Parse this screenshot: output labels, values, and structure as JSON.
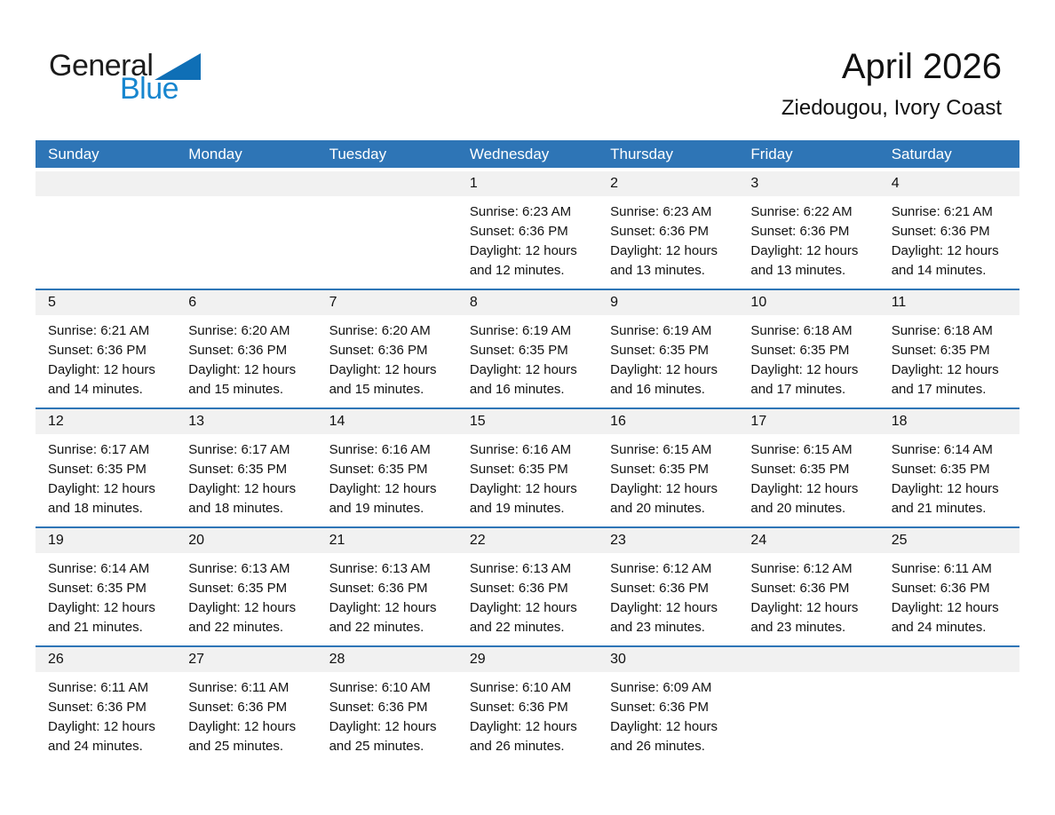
{
  "logo": {
    "part1": "General",
    "part2": "Blue"
  },
  "header": {
    "title": "April 2026",
    "subtitle": "Ziedougou, Ivory Coast"
  },
  "colors": {
    "header_bg": "#2E75B6",
    "accent": "#2E75B6",
    "band_bg": "#F1F1F1",
    "logo_triangle": "#0F6FB6",
    "logo_blue": "#1786CF",
    "text": "#1a1a1a"
  },
  "weekdays": [
    "Sunday",
    "Monday",
    "Tuesday",
    "Wednesday",
    "Thursday",
    "Friday",
    "Saturday"
  ],
  "weeks": [
    [
      {
        "day": "",
        "lines": []
      },
      {
        "day": "",
        "lines": []
      },
      {
        "day": "",
        "lines": []
      },
      {
        "day": "1",
        "lines": [
          "Sunrise: 6:23 AM",
          "Sunset: 6:36 PM",
          "Daylight: 12 hours",
          "and 12 minutes."
        ]
      },
      {
        "day": "2",
        "lines": [
          "Sunrise: 6:23 AM",
          "Sunset: 6:36 PM",
          "Daylight: 12 hours",
          "and 13 minutes."
        ]
      },
      {
        "day": "3",
        "lines": [
          "Sunrise: 6:22 AM",
          "Sunset: 6:36 PM",
          "Daylight: 12 hours",
          "and 13 minutes."
        ]
      },
      {
        "day": "4",
        "lines": [
          "Sunrise: 6:21 AM",
          "Sunset: 6:36 PM",
          "Daylight: 12 hours",
          "and 14 minutes."
        ]
      }
    ],
    [
      {
        "day": "5",
        "lines": [
          "Sunrise: 6:21 AM",
          "Sunset: 6:36 PM",
          "Daylight: 12 hours",
          "and 14 minutes."
        ]
      },
      {
        "day": "6",
        "lines": [
          "Sunrise: 6:20 AM",
          "Sunset: 6:36 PM",
          "Daylight: 12 hours",
          "and 15 minutes."
        ]
      },
      {
        "day": "7",
        "lines": [
          "Sunrise: 6:20 AM",
          "Sunset: 6:36 PM",
          "Daylight: 12 hours",
          "and 15 minutes."
        ]
      },
      {
        "day": "8",
        "lines": [
          "Sunrise: 6:19 AM",
          "Sunset: 6:35 PM",
          "Daylight: 12 hours",
          "and 16 minutes."
        ]
      },
      {
        "day": "9",
        "lines": [
          "Sunrise: 6:19 AM",
          "Sunset: 6:35 PM",
          "Daylight: 12 hours",
          "and 16 minutes."
        ]
      },
      {
        "day": "10",
        "lines": [
          "Sunrise: 6:18 AM",
          "Sunset: 6:35 PM",
          "Daylight: 12 hours",
          "and 17 minutes."
        ]
      },
      {
        "day": "11",
        "lines": [
          "Sunrise: 6:18 AM",
          "Sunset: 6:35 PM",
          "Daylight: 12 hours",
          "and 17 minutes."
        ]
      }
    ],
    [
      {
        "day": "12",
        "lines": [
          "Sunrise: 6:17 AM",
          "Sunset: 6:35 PM",
          "Daylight: 12 hours",
          "and 18 minutes."
        ]
      },
      {
        "day": "13",
        "lines": [
          "Sunrise: 6:17 AM",
          "Sunset: 6:35 PM",
          "Daylight: 12 hours",
          "and 18 minutes."
        ]
      },
      {
        "day": "14",
        "lines": [
          "Sunrise: 6:16 AM",
          "Sunset: 6:35 PM",
          "Daylight: 12 hours",
          "and 19 minutes."
        ]
      },
      {
        "day": "15",
        "lines": [
          "Sunrise: 6:16 AM",
          "Sunset: 6:35 PM",
          "Daylight: 12 hours",
          "and 19 minutes."
        ]
      },
      {
        "day": "16",
        "lines": [
          "Sunrise: 6:15 AM",
          "Sunset: 6:35 PM",
          "Daylight: 12 hours",
          "and 20 minutes."
        ]
      },
      {
        "day": "17",
        "lines": [
          "Sunrise: 6:15 AM",
          "Sunset: 6:35 PM",
          "Daylight: 12 hours",
          "and 20 minutes."
        ]
      },
      {
        "day": "18",
        "lines": [
          "Sunrise: 6:14 AM",
          "Sunset: 6:35 PM",
          "Daylight: 12 hours",
          "and 21 minutes."
        ]
      }
    ],
    [
      {
        "day": "19",
        "lines": [
          "Sunrise: 6:14 AM",
          "Sunset: 6:35 PM",
          "Daylight: 12 hours",
          "and 21 minutes."
        ]
      },
      {
        "day": "20",
        "lines": [
          "Sunrise: 6:13 AM",
          "Sunset: 6:35 PM",
          "Daylight: 12 hours",
          "and 22 minutes."
        ]
      },
      {
        "day": "21",
        "lines": [
          "Sunrise: 6:13 AM",
          "Sunset: 6:36 PM",
          "Daylight: 12 hours",
          "and 22 minutes."
        ]
      },
      {
        "day": "22",
        "lines": [
          "Sunrise: 6:13 AM",
          "Sunset: 6:36 PM",
          "Daylight: 12 hours",
          "and 22 minutes."
        ]
      },
      {
        "day": "23",
        "lines": [
          "Sunrise: 6:12 AM",
          "Sunset: 6:36 PM",
          "Daylight: 12 hours",
          "and 23 minutes."
        ]
      },
      {
        "day": "24",
        "lines": [
          "Sunrise: 6:12 AM",
          "Sunset: 6:36 PM",
          "Daylight: 12 hours",
          "and 23 minutes."
        ]
      },
      {
        "day": "25",
        "lines": [
          "Sunrise: 6:11 AM",
          "Sunset: 6:36 PM",
          "Daylight: 12 hours",
          "and 24 minutes."
        ]
      }
    ],
    [
      {
        "day": "26",
        "lines": [
          "Sunrise: 6:11 AM",
          "Sunset: 6:36 PM",
          "Daylight: 12 hours",
          "and 24 minutes."
        ]
      },
      {
        "day": "27",
        "lines": [
          "Sunrise: 6:11 AM",
          "Sunset: 6:36 PM",
          "Daylight: 12 hours",
          "and 25 minutes."
        ]
      },
      {
        "day": "28",
        "lines": [
          "Sunrise: 6:10 AM",
          "Sunset: 6:36 PM",
          "Daylight: 12 hours",
          "and 25 minutes."
        ]
      },
      {
        "day": "29",
        "lines": [
          "Sunrise: 6:10 AM",
          "Sunset: 6:36 PM",
          "Daylight: 12 hours",
          "and 26 minutes."
        ]
      },
      {
        "day": "30",
        "lines": [
          "Sunrise: 6:09 AM",
          "Sunset: 6:36 PM",
          "Daylight: 12 hours",
          "and 26 minutes."
        ]
      },
      {
        "day": "",
        "lines": []
      },
      {
        "day": "",
        "lines": []
      }
    ]
  ]
}
